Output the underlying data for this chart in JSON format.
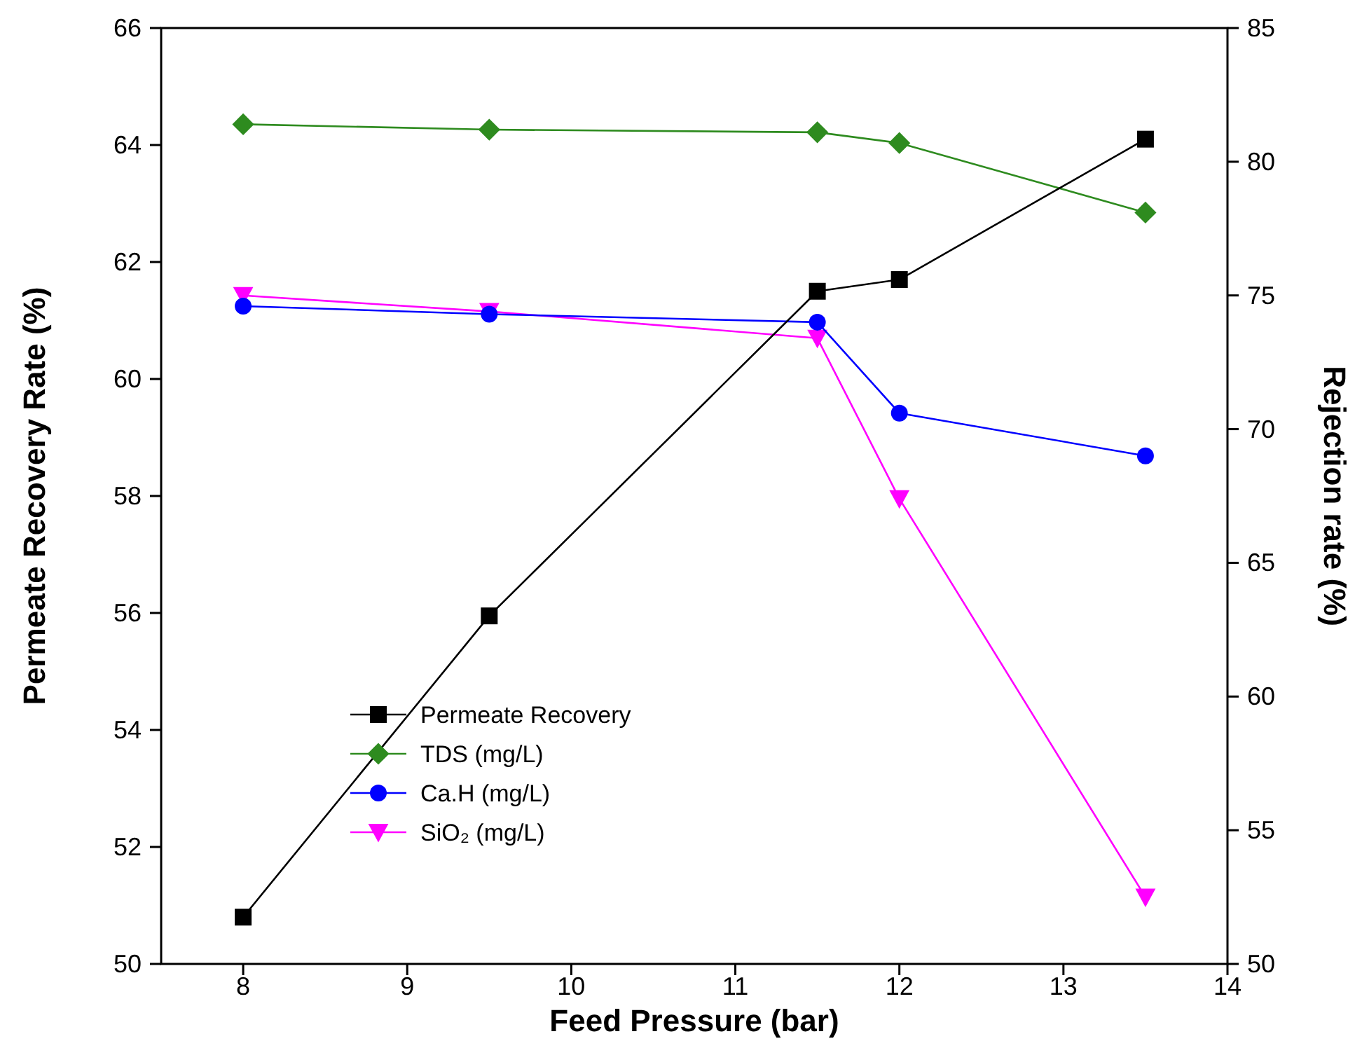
{
  "chart_data": {
    "type": "line",
    "xlabel": "Feed Pressure (bar)",
    "ylabel": "Permeate Recovery Rate (%)",
    "y2label": "Rejection rate (%)",
    "xlim": [
      7.5,
      14
    ],
    "xticks": [
      8,
      9,
      10,
      11,
      12,
      13,
      14
    ],
    "ylim": [
      50,
      66
    ],
    "yticks": [
      50,
      52,
      54,
      56,
      58,
      60,
      62,
      64,
      66
    ],
    "y2lim": [
      50,
      85
    ],
    "y2ticks": [
      50,
      55,
      60,
      65,
      70,
      75,
      80,
      85
    ],
    "x": [
      8,
      9.5,
      11.5,
      12,
      13.5
    ],
    "legend": "bottom left",
    "grid": false,
    "line_style": "solid",
    "series": [
      {
        "name": "Permeate Recovery",
        "color": "#000000",
        "marker": "square",
        "values": [
          50.8,
          55.95,
          61.5,
          61.7,
          64.1
        ]
      },
      {
        "name": "TDS (mg/L)",
        "color": "#2e8b1f",
        "marker": "diamond",
        "axis": "y2",
        "values": [
          81.4,
          81.2,
          81.1,
          80.7,
          78.1
        ]
      },
      {
        "name": "Ca.H (mg/L)",
        "color": "#0000ff",
        "marker": "circle",
        "axis": "y2",
        "values": [
          74.6,
          74.3,
          74.0,
          70.6,
          69.0
        ]
      },
      {
        "name": "SiO₂ (mg/L)",
        "color": "#ff00ff",
        "marker": "triangle",
        "axis": "y2",
        "values": [
          75.0,
          74.4,
          73.4,
          67.4,
          52.5
        ]
      }
    ]
  }
}
